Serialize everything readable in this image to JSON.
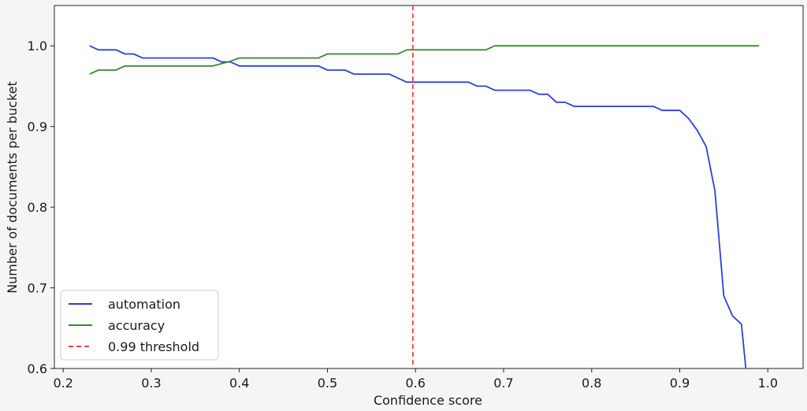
{
  "chart_data": {
    "type": "line",
    "xlabel": "Confidence score",
    "ylabel": "Number of documents per bucket",
    "xlim": [
      0.19,
      1.04
    ],
    "ylim": [
      0.6,
      1.05
    ],
    "xticks": [
      0.2,
      0.3,
      0.4,
      0.5,
      0.6,
      0.7,
      0.8,
      0.9,
      1.0
    ],
    "xtick_labels": [
      "0.2",
      "0.3",
      "0.4",
      "0.5",
      "0.6",
      "0.7",
      "0.8",
      "0.9",
      "1.0"
    ],
    "yticks": [
      0.6,
      0.7,
      0.8,
      0.9,
      1.0
    ],
    "ytick_labels": [
      "0.6",
      "0.7",
      "0.8",
      "0.9",
      "1.0"
    ],
    "grid": false,
    "legend_position": "lower-left",
    "threshold": {
      "x": 0.597,
      "label": "0.99 threshold",
      "color": "#f0453a"
    },
    "series": [
      {
        "name": "automation",
        "color": "#2b3fe0",
        "x": [
          0.23,
          0.24,
          0.26,
          0.27,
          0.28,
          0.29,
          0.37,
          0.38,
          0.39,
          0.4,
          0.48,
          0.49,
          0.5,
          0.52,
          0.53,
          0.57,
          0.58,
          0.59,
          0.6,
          0.66,
          0.67,
          0.68,
          0.69,
          0.73,
          0.74,
          0.75,
          0.76,
          0.77,
          0.78,
          0.8,
          0.87,
          0.88,
          0.89,
          0.9,
          0.91,
          0.92,
          0.93,
          0.94,
          0.95,
          0.96,
          0.97,
          0.975
        ],
        "y": [
          1.0,
          0.995,
          0.995,
          0.99,
          0.99,
          0.985,
          0.985,
          0.98,
          0.98,
          0.975,
          0.975,
          0.975,
          0.97,
          0.97,
          0.965,
          0.965,
          0.96,
          0.955,
          0.955,
          0.955,
          0.95,
          0.95,
          0.945,
          0.945,
          0.94,
          0.94,
          0.93,
          0.93,
          0.925,
          0.925,
          0.925,
          0.92,
          0.92,
          0.92,
          0.91,
          0.895,
          0.875,
          0.82,
          0.69,
          0.665,
          0.655,
          0.6
        ]
      },
      {
        "name": "accuracy",
        "color": "#3a8a2e",
        "x": [
          0.23,
          0.24,
          0.26,
          0.27,
          0.29,
          0.37,
          0.38,
          0.39,
          0.4,
          0.49,
          0.5,
          0.58,
          0.59,
          0.68,
          0.69,
          0.99
        ],
        "y": [
          0.965,
          0.97,
          0.97,
          0.975,
          0.975,
          0.975,
          0.978,
          0.981,
          0.985,
          0.985,
          0.99,
          0.99,
          0.995,
          0.995,
          1.0,
          1.0
        ]
      }
    ]
  }
}
